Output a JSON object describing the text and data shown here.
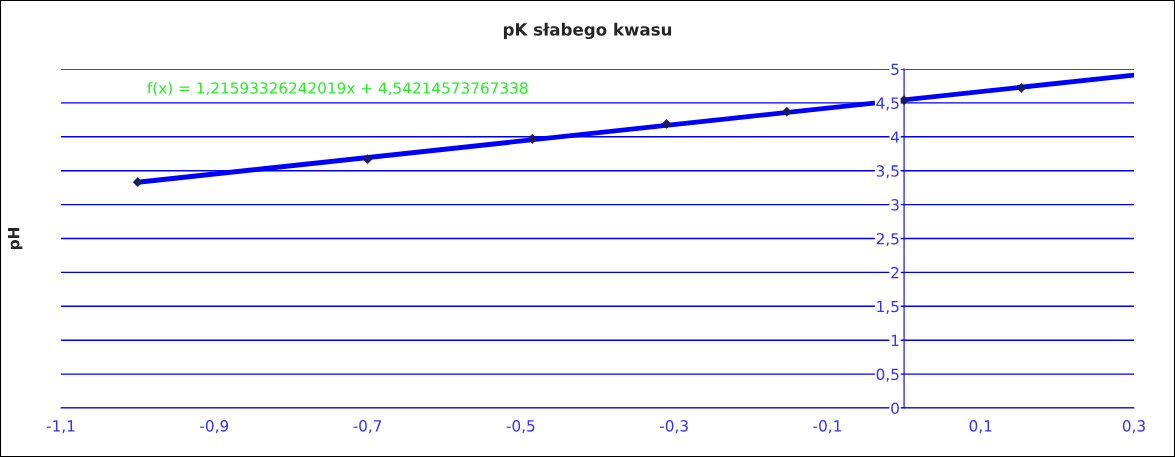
{
  "chart_data": {
    "type": "scatter",
    "title": "pK słabego kwasu",
    "ylabel": "pH",
    "annotations": [
      "f(x) = 1,21593326242019x + 4,54214573767338"
    ],
    "series": [
      {
        "type": "scatter",
        "color": "#1a1a66",
        "marker": "diamond",
        "x": [
          -1.0,
          -0.7,
          -0.485,
          -0.31,
          -0.153,
          0.0,
          0.153
        ],
        "values": [
          3.33,
          3.67,
          3.97,
          4.19,
          4.37,
          4.54,
          4.72
        ]
      },
      {
        "type": "line",
        "color": "#0000ff",
        "marker": "none",
        "x": [
          -1.0,
          0.3
        ],
        "values": [
          3.33,
          4.91
        ]
      }
    ],
    "xlim": [
      -1.1,
      0.3
    ],
    "ylim": [
      0,
      5
    ],
    "xticks": [
      {
        "value": -1.1,
        "label": "-1,1"
      },
      {
        "value": -0.9,
        "label": "-0,9"
      },
      {
        "value": -0.7,
        "label": "-0,7"
      },
      {
        "value": -0.5,
        "label": "-0,5"
      },
      {
        "value": -0.3,
        "label": "-0,3"
      },
      {
        "value": -0.1,
        "label": "-0,1"
      },
      {
        "value": 0.1,
        "label": "0,1"
      },
      {
        "value": 0.3,
        "label": "0,3"
      }
    ],
    "yticks": [
      0,
      {
        "value": 0.5,
        "label": "0,5"
      },
      1,
      {
        "value": 1.5,
        "label": "1,5"
      },
      2,
      {
        "value": 2.5,
        "label": "2,5"
      },
      3,
      {
        "value": 3.5,
        "label": "3,5"
      },
      4,
      {
        "value": 4.5,
        "label": "4,5"
      },
      5
    ],
    "grid": "y",
    "legend": false
  }
}
